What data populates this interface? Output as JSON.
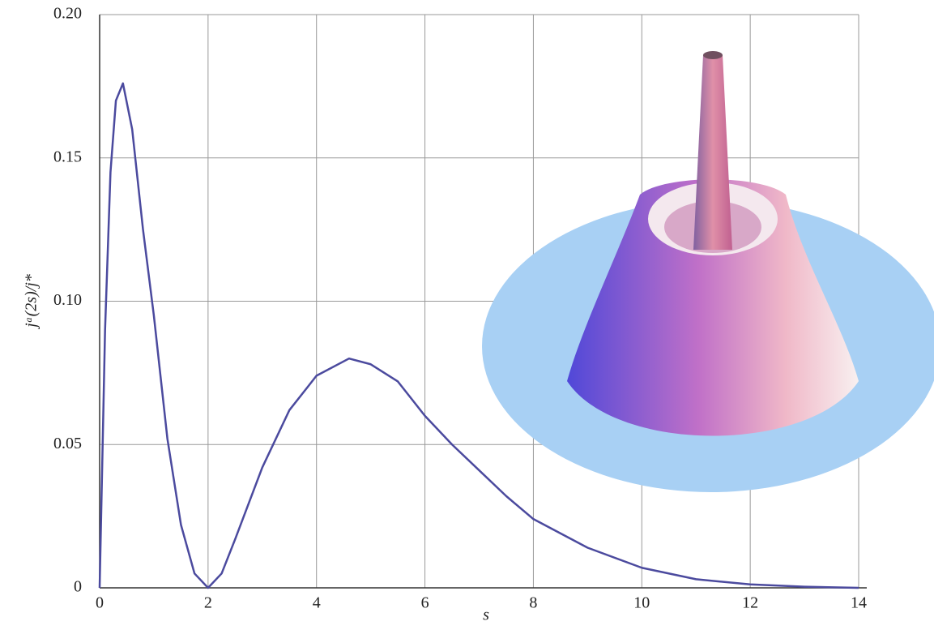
{
  "chart_data": {
    "type": "line",
    "x_label": "s",
    "y_label": "jᵃ(2s)/j*",
    "x": [
      0,
      0.1,
      0.2,
      0.3,
      0.43,
      0.6,
      0.8,
      1.0,
      1.25,
      1.5,
      1.75,
      2.0,
      2.25,
      2.5,
      3.0,
      3.5,
      4.0,
      4.6,
      5.0,
      5.5,
      6.0,
      6.5,
      7.0,
      7.5,
      8.0,
      9.0,
      10.0,
      11.0,
      12.0,
      13.0,
      14.0
    ],
    "series": [
      {
        "color": "#4b4a9e",
        "values": [
          0,
          0.09,
          0.145,
          0.17,
          0.176,
          0.16,
          0.125,
          0.095,
          0.052,
          0.022,
          0.005,
          0,
          0.005,
          0.017,
          0.042,
          0.062,
          0.074,
          0.08,
          0.078,
          0.072,
          0.06,
          0.05,
          0.041,
          0.032,
          0.024,
          0.014,
          0.007,
          0.003,
          0.0012,
          0.0004,
          0
        ]
      }
    ],
    "xlim": [
      0,
      14
    ],
    "ylim": [
      0,
      0.2
    ],
    "xticks": [
      0,
      2,
      4,
      6,
      8,
      10,
      12,
      14
    ],
    "yticks": [
      0,
      0.05,
      {
        "value": 0.1,
        "label": "0.10"
      },
      0.15,
      {
        "value": 0.2,
        "label": "0.20"
      }
    ],
    "grid": true
  }
}
